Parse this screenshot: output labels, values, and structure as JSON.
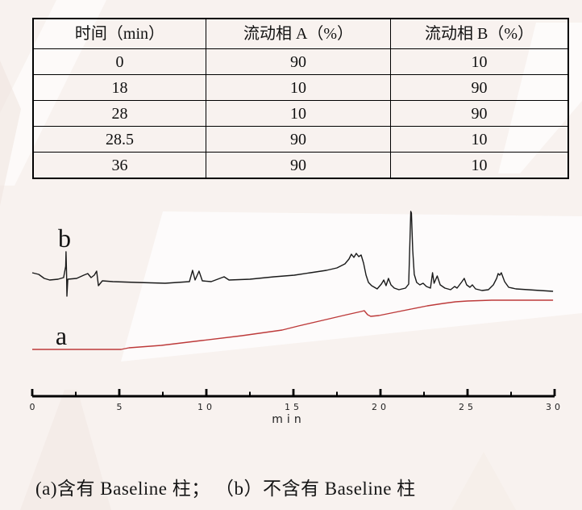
{
  "table": {
    "headers": [
      "时间（min）",
      "流动相 A（%）",
      "流动相 B（%）"
    ],
    "rows": [
      [
        "0",
        "90",
        "10"
      ],
      [
        "18",
        "10",
        "90"
      ],
      [
        "28",
        "10",
        "90"
      ],
      [
        "28.5",
        "90",
        "10"
      ],
      [
        "36",
        "90",
        "10"
      ]
    ]
  },
  "chart_data": {
    "type": "line",
    "title": "",
    "xlabel": "min",
    "ylabel": "",
    "x_axis": {
      "min": 0,
      "max": 30,
      "major_ticks": [
        0,
        5,
        10,
        15,
        20,
        25,
        30
      ],
      "major_tick_labels": [
        "0",
        "5",
        "10",
        "15",
        "20",
        "25",
        "30"
      ],
      "minor_ticks": [
        2.5,
        7.5,
        12.5,
        17.5,
        22.5,
        27.5
      ]
    },
    "y_axis": {
      "visible": false,
      "units": "arbitrary intensity"
    },
    "legend_position": "inline-labels",
    "grid": false,
    "series": [
      {
        "name": "b",
        "label": "b",
        "color": "#1a1a1a",
        "points": [
          [
            0,
            132
          ],
          [
            0.37,
            130
          ],
          [
            0.69,
            125
          ],
          [
            1.0,
            123
          ],
          [
            1.48,
            124
          ],
          [
            1.8,
            126
          ],
          [
            1.92,
            140
          ],
          [
            1.94,
            158
          ],
          [
            1.97,
            130
          ],
          [
            1.99,
            103
          ],
          [
            2.04,
            124
          ],
          [
            2.55,
            125
          ],
          [
            2.96,
            129
          ],
          [
            3.19,
            131
          ],
          [
            3.38,
            126
          ],
          [
            3.56,
            129
          ],
          [
            3.7,
            134
          ],
          [
            3.8,
            116
          ],
          [
            4.03,
            122
          ],
          [
            4.63,
            121
          ],
          [
            6.02,
            120
          ],
          [
            7.64,
            119
          ],
          [
            9.03,
            121
          ],
          [
            9.21,
            135
          ],
          [
            9.35,
            123
          ],
          [
            9.58,
            134
          ],
          [
            9.77,
            122
          ],
          [
            10.28,
            121
          ],
          [
            11.02,
            127
          ],
          [
            11.3,
            123
          ],
          [
            12.5,
            124
          ],
          [
            13.89,
            127
          ],
          [
            15.05,
            129
          ],
          [
            15.97,
            132
          ],
          [
            16.9,
            135
          ],
          [
            17.5,
            138
          ],
          [
            17.96,
            143
          ],
          [
            18.19,
            149
          ],
          [
            18.33,
            155
          ],
          [
            18.47,
            151
          ],
          [
            18.61,
            156
          ],
          [
            18.75,
            152
          ],
          [
            18.89,
            154
          ],
          [
            19.03,
            144
          ],
          [
            19.17,
            129
          ],
          [
            19.31,
            120
          ],
          [
            19.49,
            116
          ],
          [
            19.81,
            112
          ],
          [
            20.05,
            118
          ],
          [
            20.19,
            123
          ],
          [
            20.32,
            116
          ],
          [
            20.46,
            125
          ],
          [
            20.6,
            117
          ],
          [
            20.79,
            113
          ],
          [
            21.06,
            111
          ],
          [
            21.44,
            113
          ],
          [
            21.62,
            118
          ],
          [
            21.69,
            170
          ],
          [
            21.74,
            208
          ],
          [
            21.78,
            206
          ],
          [
            21.85,
            160
          ],
          [
            21.94,
            130
          ],
          [
            22.08,
            120
          ],
          [
            22.26,
            117
          ],
          [
            22.45,
            119
          ],
          [
            22.64,
            115
          ],
          [
            22.87,
            113
          ],
          [
            22.99,
            132
          ],
          [
            23.08,
            119
          ],
          [
            23.26,
            128
          ],
          [
            23.43,
            117
          ],
          [
            23.7,
            113
          ],
          [
            24.03,
            111
          ],
          [
            24.26,
            115
          ],
          [
            24.4,
            113
          ],
          [
            24.68,
            121
          ],
          [
            24.81,
            125
          ],
          [
            24.95,
            117
          ],
          [
            25.14,
            114
          ],
          [
            25.28,
            117
          ],
          [
            25.46,
            112
          ],
          [
            25.83,
            110
          ],
          [
            26.2,
            111
          ],
          [
            26.48,
            117
          ],
          [
            26.67,
            125
          ],
          [
            26.76,
            131
          ],
          [
            26.85,
            129
          ],
          [
            26.94,
            132
          ],
          [
            27.13,
            121
          ],
          [
            27.36,
            114
          ],
          [
            27.78,
            112
          ],
          [
            28.47,
            111
          ],
          [
            29.17,
            110
          ],
          [
            29.91,
            109
          ]
        ]
      },
      {
        "name": "a",
        "label": "a",
        "color": "#bd3a3a",
        "points": [
          [
            0,
            37
          ],
          [
            2.8,
            37
          ],
          [
            5.1,
            37
          ],
          [
            5.56,
            39
          ],
          [
            7.41,
            42
          ],
          [
            9.72,
            48
          ],
          [
            12.04,
            54
          ],
          [
            14.35,
            61
          ],
          [
            15.28,
            66
          ],
          [
            16.67,
            73
          ],
          [
            18.06,
            80
          ],
          [
            18.89,
            84
          ],
          [
            19.07,
            85
          ],
          [
            19.26,
            80
          ],
          [
            19.44,
            78
          ],
          [
            19.91,
            79
          ],
          [
            20.83,
            83
          ],
          [
            21.76,
            87
          ],
          [
            22.69,
            91
          ],
          [
            23.61,
            94
          ],
          [
            24.31,
            96
          ],
          [
            25.0,
            97
          ],
          [
            26.39,
            98
          ],
          [
            28.24,
            98
          ],
          [
            29.91,
            98
          ]
        ]
      }
    ]
  },
  "caption": "(a)含有 Baseline 柱； （b）不含有 Baseline 柱"
}
